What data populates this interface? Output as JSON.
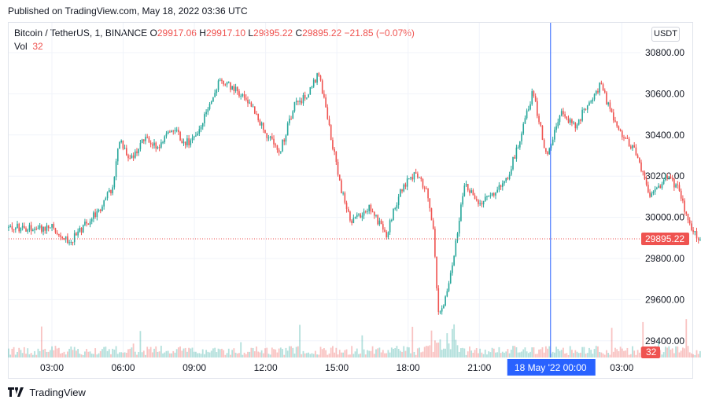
{
  "header": {
    "published": "Published on TradingView.com, May 18, 2022 03:36 UTC"
  },
  "legend": {
    "symbol": "Bitcoin / TetherUS, 1, BINANCE",
    "o_label": "O",
    "o_value": "29917.06",
    "h_label": "H",
    "h_value": "29917.10",
    "l_label": "L",
    "l_value": "29895.22",
    "c_label": "C",
    "c_value": "29895.22",
    "change": "−21.85 (−0.07%)",
    "vol_label": "Vol",
    "vol_value": "32"
  },
  "currency_button": "USDT",
  "footer": {
    "brand": "TradingView"
  },
  "colors": {
    "up": "#26a69a",
    "down": "#ef5350",
    "crosshair": "#2962ff",
    "grid": "#f0f3fa"
  },
  "chart_data": {
    "type": "candlestick",
    "symbol": "Bitcoin / TetherUS",
    "interval": "1",
    "exchange": "BINANCE",
    "y_ticks": [
      "30800.00",
      "30600.00",
      "30400.00",
      "30200.00",
      "30000.00",
      "29800.00",
      "29600.00",
      "29400.00"
    ],
    "ylim": [
      29300,
      30900
    ],
    "x_ticks": [
      "03:00",
      "06:00",
      "09:00",
      "12:00",
      "15:00",
      "18:00",
      "21:00",
      "03:00"
    ],
    "crosshair_label": "18 May '22   00:00",
    "last_price_label": "29895.22",
    "last_price": 29895.22,
    "last_volume_label": "32",
    "price_path": [
      {
        "t": 0.0,
        "p": 29950
      },
      {
        "t": 0.5,
        "p": 29880
      },
      {
        "t": 1.0,
        "p": 29980
      },
      {
        "t": 1.4,
        "p": 30050
      },
      {
        "t": 1.7,
        "p": 30150
      },
      {
        "t": 1.9,
        "p": 30370
      },
      {
        "t": 2.2,
        "p": 30280
      },
      {
        "t": 2.6,
        "p": 30380
      },
      {
        "t": 3.0,
        "p": 30330
      },
      {
        "t": 3.4,
        "p": 30440
      },
      {
        "t": 3.7,
        "p": 30360
      },
      {
        "t": 4.0,
        "p": 30380
      },
      {
        "t": 4.4,
        "p": 30530
      },
      {
        "t": 4.7,
        "p": 30660
      },
      {
        "t": 5.1,
        "p": 30630
      },
      {
        "t": 5.6,
        "p": 30550
      },
      {
        "t": 6.0,
        "p": 30410
      },
      {
        "t": 6.4,
        "p": 30320
      },
      {
        "t": 6.8,
        "p": 30540
      },
      {
        "t": 7.2,
        "p": 30600
      },
      {
        "t": 7.5,
        "p": 30700
      },
      {
        "t": 7.8,
        "p": 30420
      },
      {
        "t": 8.1,
        "p": 30150
      },
      {
        "t": 8.4,
        "p": 29980
      },
      {
        "t": 8.9,
        "p": 30050
      },
      {
        "t": 9.4,
        "p": 29920
      },
      {
        "t": 9.8,
        "p": 30140
      },
      {
        "t": 10.2,
        "p": 30210
      },
      {
        "t": 10.5,
        "p": 30140
      },
      {
        "t": 10.7,
        "p": 29950
      },
      {
        "t": 10.85,
        "p": 29520
      },
      {
        "t": 11.05,
        "p": 29600
      },
      {
        "t": 11.3,
        "p": 29840
      },
      {
        "t": 11.6,
        "p": 30170
      },
      {
        "t": 12.0,
        "p": 30060
      },
      {
        "t": 12.4,
        "p": 30110
      },
      {
        "t": 12.8,
        "p": 30190
      },
      {
        "t": 13.2,
        "p": 30420
      },
      {
        "t": 13.5,
        "p": 30610
      },
      {
        "t": 13.9,
        "p": 30290
      },
      {
        "t": 14.3,
        "p": 30520
      },
      {
        "t": 14.7,
        "p": 30440
      },
      {
        "t": 15.0,
        "p": 30540
      },
      {
        "t": 15.4,
        "p": 30640
      },
      {
        "t": 15.9,
        "p": 30430
      },
      {
        "t": 16.4,
        "p": 30320
      },
      {
        "t": 16.8,
        "p": 30110
      },
      {
        "t": 17.3,
        "p": 30200
      },
      {
        "t": 17.6,
        "p": 30130
      },
      {
        "t": 17.9,
        "p": 29960
      },
      {
        "t": 18.2,
        "p": 29895
      }
    ]
  }
}
